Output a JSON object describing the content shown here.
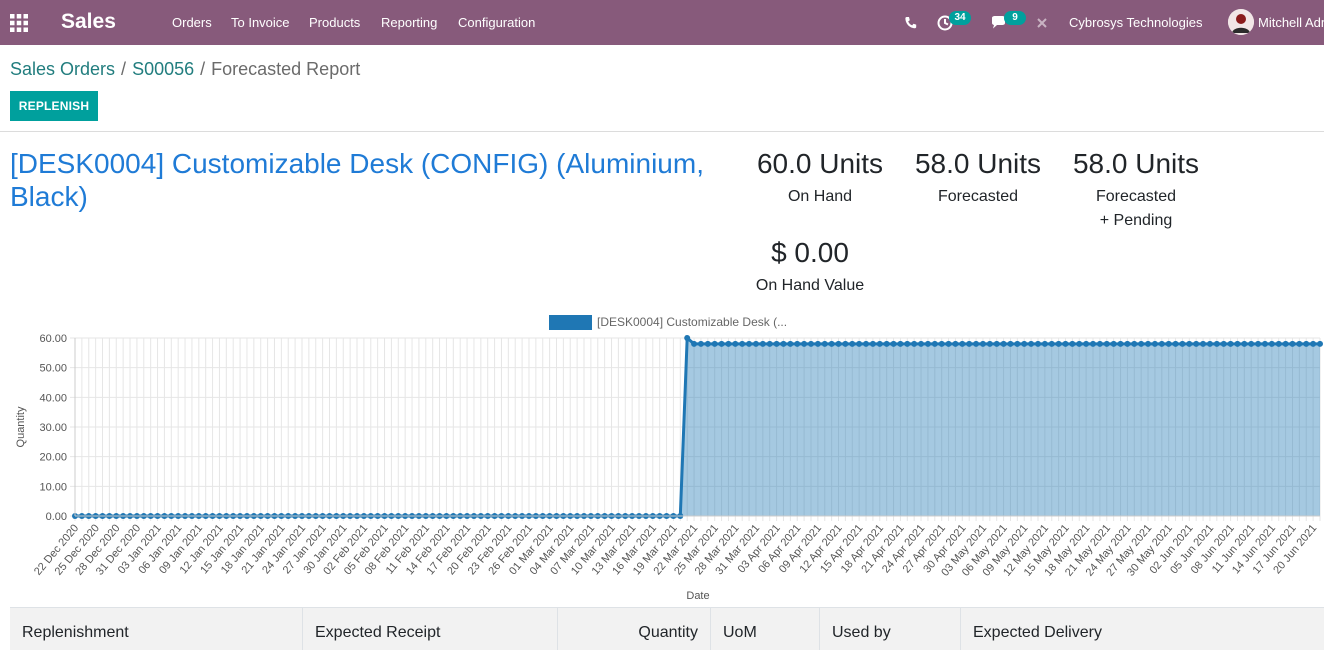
{
  "navbar": {
    "app_name": "Sales",
    "menu": [
      "Orders",
      "To Invoice",
      "Products",
      "Reporting",
      "Configuration"
    ],
    "activity_count": "34",
    "message_count": "9",
    "company": "Cybrosys Technologies",
    "user": "Mitchell Admin"
  },
  "breadcrumb": [
    "Sales Orders",
    "S00056",
    "Forecasted Report"
  ],
  "actions": {
    "replenish_label": "REPLENISH"
  },
  "product": {
    "title": "[DESK0004] Customizable Desk (CONFIG) (Aluminium, Black)"
  },
  "kpis": {
    "on_hand": {
      "value": "60.0 Units",
      "label": "On Hand"
    },
    "forecasted": {
      "value": "58.0 Units",
      "label": "Forecasted"
    },
    "forecasted_pending": {
      "value": "58.0 Units",
      "label_line1": "Forecasted",
      "label_line2": "+ Pending"
    },
    "on_hand_value": {
      "value": "$ 0.00",
      "label": "On Hand Value"
    }
  },
  "chart_data": {
    "type": "area",
    "legend": [
      "[DESK0004] Customizable Desk (..."
    ],
    "series": [
      {
        "name": "[DESK0004] Customizable Desk (...",
        "color": "#1f77b4",
        "fill": "rgba(31,119,180,0.4)"
      }
    ],
    "xlabel": "Date",
    "ylabel": "Quantity",
    "ylim": [
      0,
      60
    ],
    "yticks": [
      "0.00",
      "10.00",
      "20.00",
      "30.00",
      "40.00",
      "50.00",
      "60.00"
    ],
    "x_start": "2020-12-22",
    "x_end": "2021-06-21",
    "x_tick_labels": [
      "22 Dec 2020",
      "25 Dec 2020",
      "28 Dec 2020",
      "31 Dec 2020",
      "03 Jan 2021",
      "06 Jan 2021",
      "09 Jan 2021",
      "12 Jan 2021",
      "15 Jan 2021",
      "18 Jan 2021",
      "21 Jan 2021",
      "24 Jan 2021",
      "27 Jan 2021",
      "30 Jan 2021",
      "02 Feb 2021",
      "05 Feb 2021",
      "08 Feb 2021",
      "11 Feb 2021",
      "14 Feb 2021",
      "17 Feb 2021",
      "20 Feb 2021",
      "23 Feb 2021",
      "26 Feb 2021",
      "01 Mar 2021",
      "04 Mar 2021",
      "07 Mar 2021",
      "10 Mar 2021",
      "13 Mar 2021",
      "16 Mar 2021",
      "19 Mar 2021",
      "22 Mar 2021",
      "25 Mar 2021",
      "28 Mar 2021",
      "31 Mar 2021",
      "03 Apr 2021",
      "06 Apr 2021",
      "09 Apr 2021",
      "12 Apr 2021",
      "15 Apr 2021",
      "18 Apr 2021",
      "21 Apr 2021",
      "24 Apr 2021",
      "27 Apr 2021",
      "30 Apr 2021",
      "03 May 2021",
      "06 May 2021",
      "09 May 2021",
      "12 May 2021",
      "15 May 2021",
      "18 May 2021",
      "21 May 2021",
      "24 May 2021",
      "27 May 2021",
      "30 May 2021",
      "02 Jun 2021",
      "05 Jun 2021",
      "08 Jun 2021",
      "11 Jun 2021",
      "14 Jun 2021",
      "17 Jun 2021",
      "20 Jun 2021"
    ],
    "points": [
      {
        "from": "2020-12-22",
        "to": "2021-03-20",
        "y": 0
      },
      {
        "from": "2021-03-21",
        "to": "2021-03-21",
        "y": 60
      },
      {
        "from": "2021-03-22",
        "to": "2021-06-21",
        "y": 58
      }
    ],
    "grid": true
  },
  "table": {
    "headers": [
      "Replenishment",
      "Expected Receipt",
      "Quantity",
      "UoM",
      "Used by",
      "Expected Delivery"
    ]
  }
}
